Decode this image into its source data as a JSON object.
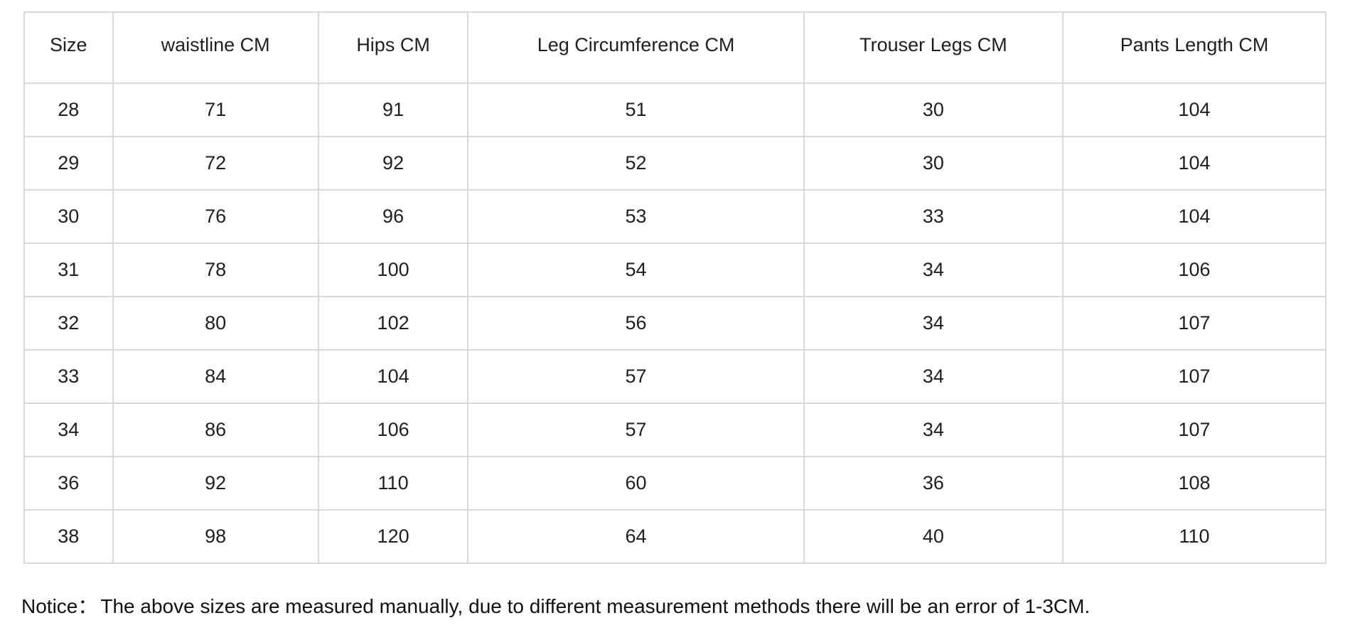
{
  "chart_data": {
    "type": "table",
    "title": "",
    "columns": [
      "Size",
      "waistline CM",
      "Hips CM",
      "Leg Circumference CM",
      "Trouser Legs CM",
      "Pants Length CM"
    ],
    "rows": [
      [
        "28",
        "71",
        "91",
        "51",
        "30",
        "104"
      ],
      [
        "29",
        "72",
        "92",
        "52",
        "30",
        "104"
      ],
      [
        "30",
        "76",
        "96",
        "53",
        "33",
        "104"
      ],
      [
        "31",
        "78",
        "100",
        "54",
        "34",
        "106"
      ],
      [
        "32",
        "80",
        "102",
        "56",
        "34",
        "107"
      ],
      [
        "33",
        "84",
        "104",
        "57",
        "34",
        "107"
      ],
      [
        "34",
        "86",
        "106",
        "57",
        "34",
        "107"
      ],
      [
        "36",
        "92",
        "110",
        "60",
        "36",
        "108"
      ],
      [
        "38",
        "98",
        "120",
        "64",
        "40",
        "110"
      ]
    ],
    "column_width_percents": [
      6.8,
      15.8,
      11.5,
      25.8,
      19.9,
      20.2
    ]
  },
  "notice": {
    "label": "Notice：",
    "text": "The above sizes are measured manually, due to different measurement methods there will be an error of 1-3CM."
  },
  "colors": {
    "background": "#ffffff",
    "border": "#d9d9d9",
    "text": "#1f1f1f"
  }
}
